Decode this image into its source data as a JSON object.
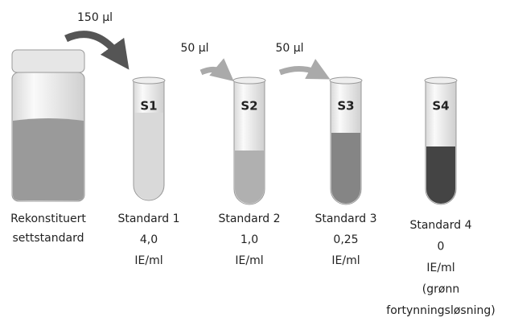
{
  "transfers": [
    {
      "volume": "150 µl"
    },
    {
      "volume": "50 µl"
    },
    {
      "volume": "50 µl"
    }
  ],
  "vial": {
    "label": [
      "Rekonstituert",
      "settstandard"
    ]
  },
  "tubes": [
    {
      "tag": "S1",
      "lines": [
        "Standard 1",
        "4,0",
        "IE/ml"
      ]
    },
    {
      "tag": "S2",
      "lines": [
        "Standard 2",
        "1,0",
        "IE/ml"
      ]
    },
    {
      "tag": "S3",
      "lines": [
        "Standard 3",
        "0,25",
        "IE/ml"
      ]
    },
    {
      "tag": "S4",
      "lines": [
        "Standard 4",
        "0",
        "IE/ml",
        "(grønn",
        "fortynningsløsning)"
      ]
    }
  ]
}
